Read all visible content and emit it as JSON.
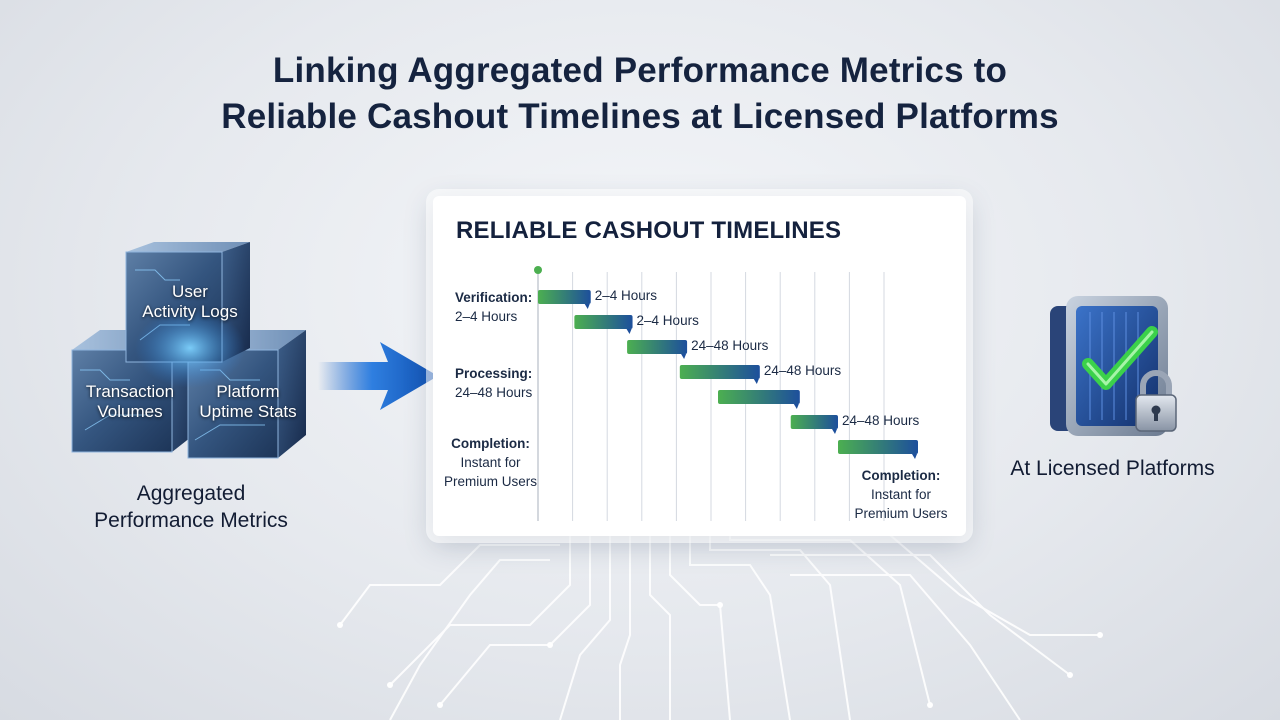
{
  "title": {
    "line1": "Linking Aggregated Performance Metrics to",
    "line2": "Reliable Cashout Timelines at Licensed Platforms"
  },
  "cubes": {
    "top": [
      "User",
      "Activity Logs"
    ],
    "left": [
      "Transaction",
      "Volumes"
    ],
    "right": [
      "Platform",
      "Uptime Stats"
    ],
    "caption": [
      "Aggregated",
      "Performance Metrics"
    ]
  },
  "panel": {
    "title": "RELIABLE CASHOUT TIMELINES",
    "stages": [
      {
        "heading": "Verification:",
        "detail": "2–4 Hours"
      },
      {
        "heading": "Processing:",
        "detail": "24–48 Hours"
      },
      {
        "heading": "Completion:",
        "detail": [
          "Instant for",
          "Premium Users"
        ]
      }
    ],
    "end_label": {
      "heading": "Completion:",
      "detail": [
        "Instant for",
        "Premium Users"
      ]
    }
  },
  "chart_data": {
    "type": "gantt",
    "bars": [
      {
        "start": 0.0,
        "end": 1.45,
        "label": "2–4 Hours"
      },
      {
        "start": 1.0,
        "end": 2.6,
        "label": "2–4 Hours"
      },
      {
        "start": 2.45,
        "end": 4.1,
        "label": "24–48 Hours"
      },
      {
        "start": 3.9,
        "end": 6.1,
        "label": "24–48 Hours"
      },
      {
        "start": 4.95,
        "end": 7.2,
        "label": ""
      },
      {
        "start": 6.95,
        "end": 8.25,
        "label": "24–48 Hours"
      },
      {
        "start": 8.25,
        "end": 10.45,
        "label": ""
      }
    ],
    "gridlines": 11,
    "colors": {
      "start": "#4caf50",
      "end": "#1d4f9c"
    }
  },
  "vault": {
    "caption": "At Licensed Platforms",
    "icon": "secure-vault-check-lock-icon",
    "accent": "#3bd14a"
  },
  "arrow": {
    "icon": "right-arrow-icon",
    "color": "#1a63c7"
  }
}
